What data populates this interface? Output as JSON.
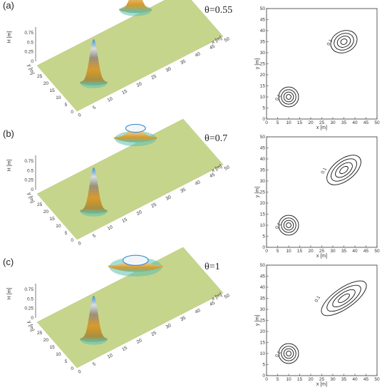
{
  "colors": {
    "base": "#c6d58c",
    "peak_blue": "#3f8fcd",
    "peak_white": "#f3f6f9",
    "peak_orange": "#d89a2c",
    "rim_teal": "#5fc0b0",
    "contour": "#111111"
  },
  "chart_data": [
    {
      "panel": "(a)",
      "theta": "θ=0.55",
      "type": "surface3d",
      "zlabel": "H [m]",
      "xlabel": "x [m]",
      "ylabel": "y [m]",
      "z_ticks": [
        "0",
        "0.25",
        "0.5",
        "0.75"
      ],
      "x_ticks": [
        "0",
        "5",
        "10",
        "15",
        "20",
        "25",
        "30",
        "35",
        "40",
        "45",
        "50"
      ],
      "y_ticks": [
        "0",
        "5",
        "10",
        "15",
        "20",
        "25"
      ],
      "mounds": [
        {
          "x": 10,
          "y": 10,
          "height": 0.8,
          "sigma_x": 3.5,
          "sigma_y": 3.5
        },
        {
          "x": 35,
          "y": 35,
          "height": 0.45,
          "sigma_x": 4.2,
          "sigma_y": 3.6
        }
      ],
      "contour": {
        "type": "contour",
        "xlabel": "x [m]",
        "ylabel": "y [m]",
        "xlim": [
          0,
          50
        ],
        "ylim": [
          0,
          50
        ],
        "ticks": [
          "0",
          "5",
          "10",
          "15",
          "20",
          "25",
          "30",
          "35",
          "40",
          "45",
          "50"
        ],
        "level_label": "0.1",
        "centers": [
          {
            "x": 10,
            "y": 10,
            "rx": [
              4.5,
              3.3,
              2.2,
              1.1
            ],
            "ry": [
              4.5,
              3.3,
              2.2,
              1.1
            ],
            "angle": 0
          },
          {
            "x": 35,
            "y": 35,
            "rx": [
              6.2,
              4.6,
              3.1,
              1.5
            ],
            "ry": [
              4.8,
              3.6,
              2.4,
              1.2
            ],
            "angle": -25
          }
        ]
      }
    },
    {
      "panel": "(b)",
      "theta": "θ=0.7",
      "type": "surface3d",
      "zlabel": "H [m]",
      "xlabel": "x [m]",
      "ylabel": "y [m]",
      "z_ticks": [
        "0",
        "0.25",
        "0.5",
        "0.75"
      ],
      "x_ticks": [
        "0",
        "5",
        "10",
        "15",
        "20",
        "25",
        "30",
        "35",
        "40",
        "45",
        "50"
      ],
      "y_ticks": [
        "0",
        "5",
        "10",
        "15",
        "20",
        "25"
      ],
      "mounds": [
        {
          "x": 10,
          "y": 10,
          "height": 0.8,
          "sigma_x": 3.5,
          "sigma_y": 3.5
        },
        {
          "x": 35,
          "y": 35,
          "height": 0.22,
          "sigma_x": 5.5,
          "sigma_y": 3.2
        }
      ],
      "contour": {
        "type": "contour",
        "xlabel": "x [m]",
        "ylabel": "y [m]",
        "xlim": [
          0,
          50
        ],
        "ylim": [
          0,
          50
        ],
        "ticks": [
          "0",
          "5",
          "10",
          "15",
          "20",
          "25",
          "30",
          "35",
          "40",
          "45",
          "50"
        ],
        "level_label": "0.1",
        "centers": [
          {
            "x": 10,
            "y": 10,
            "rx": [
              4.5,
              3.3,
              2.2,
              1.1
            ],
            "ry": [
              4.5,
              3.3,
              2.2,
              1.1
            ],
            "angle": 0
          },
          {
            "x": 35,
            "y": 35,
            "rx": [
              9.0,
              6.8,
              4.5,
              2.2
            ],
            "ry": [
              4.8,
              3.6,
              2.4,
              1.2
            ],
            "angle": -38
          }
        ]
      }
    },
    {
      "panel": "(c)",
      "theta": "θ=1",
      "type": "surface3d",
      "zlabel": "H [m]",
      "xlabel": "x [m]",
      "ylabel": "y [m]",
      "z_ticks": [
        "0",
        "0.25",
        "0.5",
        "0.75"
      ],
      "x_ticks": [
        "0",
        "5",
        "10",
        "15",
        "20",
        "25",
        "30",
        "35",
        "40",
        "45",
        "50"
      ],
      "y_ticks": [
        "0",
        "5",
        "10",
        "15",
        "20",
        "25"
      ],
      "mounds": [
        {
          "x": 10,
          "y": 10,
          "height": 0.8,
          "sigma_x": 3.5,
          "sigma_y": 3.5
        },
        {
          "x": 35,
          "y": 35,
          "height": 0.15,
          "sigma_x": 7.0,
          "sigma_y": 3.0
        }
      ],
      "contour": {
        "type": "contour",
        "xlabel": "x [m]",
        "ylabel": "y [m]",
        "xlim": [
          0,
          50
        ],
        "ylim": [
          0,
          50
        ],
        "ticks": [
          "0",
          "5",
          "10",
          "15",
          "20",
          "25",
          "30",
          "35",
          "40",
          "45",
          "50"
        ],
        "level_label": "0.1",
        "centers": [
          {
            "x": 10,
            "y": 10,
            "rx": [
              4.5,
              3.3,
              2.2,
              1.1
            ],
            "ry": [
              4.5,
              3.3,
              2.2,
              1.1
            ],
            "angle": 0
          },
          {
            "x": 35,
            "y": 35,
            "rx": [
              12.0,
              9.0,
              6.0,
              3.0
            ],
            "ry": [
              4.6,
              3.5,
              2.3,
              1.2
            ],
            "angle": -35
          }
        ]
      }
    }
  ]
}
